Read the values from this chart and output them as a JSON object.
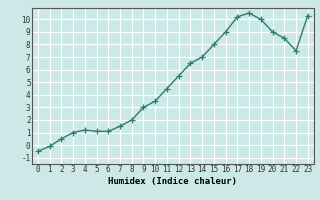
{
  "title": "",
  "xlabel": "Humidex (Indice chaleur)",
  "ylabel": "",
  "x": [
    0,
    1,
    2,
    3,
    4,
    5,
    6,
    7,
    8,
    9,
    10,
    11,
    12,
    13,
    14,
    15,
    16,
    17,
    18,
    19,
    20,
    21,
    22,
    23
  ],
  "y": [
    -0.5,
    -0.1,
    0.5,
    1.0,
    1.2,
    1.1,
    1.1,
    1.5,
    2.0,
    3.0,
    3.5,
    4.5,
    5.5,
    6.5,
    7.0,
    8.0,
    9.0,
    10.2,
    10.5,
    10.0,
    9.0,
    8.5,
    7.5,
    10.3
  ],
  "ylim": [
    -1.5,
    10.9
  ],
  "xlim": [
    -0.5,
    23.5
  ],
  "yticks": [
    -1,
    0,
    1,
    2,
    3,
    4,
    5,
    6,
    7,
    8,
    9,
    10
  ],
  "xticks": [
    0,
    1,
    2,
    3,
    4,
    5,
    6,
    7,
    8,
    9,
    10,
    11,
    12,
    13,
    14,
    15,
    16,
    17,
    18,
    19,
    20,
    21,
    22,
    23
  ],
  "line_color": "#2e7d6e",
  "marker": "+",
  "marker_size": 4,
  "bg_color": "#cce9e8",
  "grid_color_major": "#ffffff",
  "grid_color_minor": "#e8d5d5",
  "axis_color": "#555555",
  "xlabel_fontsize": 6.5,
  "tick_fontsize": 5.5,
  "line_width": 1.0
}
